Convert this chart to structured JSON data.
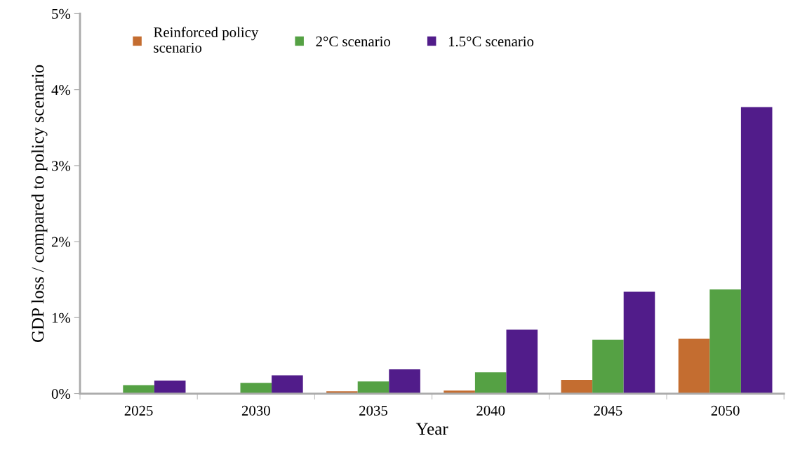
{
  "chart_data": {
    "type": "bar",
    "xlabel": "Year",
    "ylabel": "GDP loss / compared to policy scenario",
    "categories": [
      "2025",
      "2030",
      "2035",
      "2040",
      "2045",
      "2050"
    ],
    "series": [
      {
        "name": "Reinforced policy\nscenario",
        "color": "#c46d30",
        "values": [
          0,
          0,
          0.03,
          0.04,
          0.18,
          0.72
        ]
      },
      {
        "name": "2°C scenario",
        "color": "#55a144",
        "values": [
          0.11,
          0.14,
          0.16,
          0.28,
          0.71,
          1.37
        ]
      },
      {
        "name": "1.5°C scenario",
        "color": "#511c8a",
        "values": [
          0.17,
          0.24,
          0.32,
          0.84,
          1.34,
          3.77
        ]
      }
    ],
    "ylim": [
      0,
      5
    ],
    "yticks": [
      {
        "value": 0,
        "label": "0%"
      },
      {
        "value": 1,
        "label": "1%"
      },
      {
        "value": 2,
        "label": "2%"
      },
      {
        "value": 3,
        "label": "3%"
      },
      {
        "value": 4,
        "label": "4%"
      },
      {
        "value": 5,
        "label": "5%"
      }
    ],
    "grid": false,
    "legend": "top"
  }
}
